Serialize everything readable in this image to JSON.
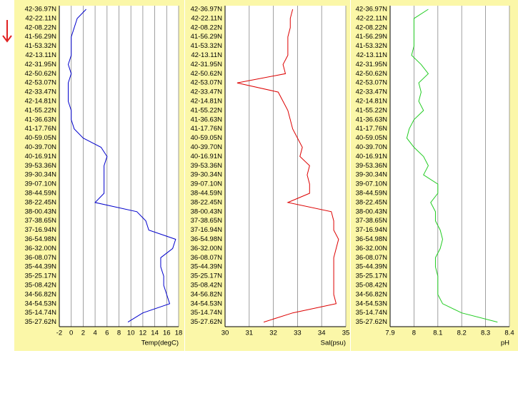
{
  "chart_data": [
    {
      "type": "line",
      "xlabel": "Temp(degC)",
      "color": "#0000cc",
      "categories": [
        "42-36.97N",
        "42-22.11N",
        "42-08.22N",
        "41-56.29N",
        "41-53.32N",
        "42-13.11N",
        "42-31.95N",
        "42-50.62N",
        "42-53.07N",
        "42-33.47N",
        "42-14.81N",
        "41-55.22N",
        "41-36.63N",
        "41-17.76N",
        "40-59.05N",
        "40-39.70N",
        "40-16.91N",
        "39-53.36N",
        "39-30.34N",
        "39-07.10N",
        "38-44.59N",
        "38-22.45N",
        "38-00.43N",
        "37-38.65N",
        "37-16.94N",
        "36-54.98N",
        "36-32.00N",
        "36-08.07N",
        "35-44.39N",
        "35-25.17N",
        "35-08.42N",
        "34-56.82N",
        "34-54.53N",
        "35-14.74N",
        "35-27.62N"
      ],
      "values": [
        2.5,
        1,
        0.5,
        0,
        0,
        0,
        -0.5,
        0,
        -0.5,
        -0.5,
        -0.5,
        0,
        0,
        0.5,
        2,
        5,
        6,
        5.5,
        5.5,
        5.5,
        5.5,
        4,
        11,
        12.5,
        13,
        17.5,
        17,
        15,
        15,
        15.5,
        15.5,
        16,
        16.5,
        12,
        9.5
      ],
      "xlim": [
        -2,
        18
      ],
      "xticks": [
        -2,
        0,
        2,
        4,
        6,
        8,
        10,
        12,
        14,
        16,
        18
      ],
      "grid": true
    },
    {
      "type": "line",
      "xlabel": "Sal(psu)",
      "color": "#dd0000",
      "categories": [
        "42-36.97N",
        "42-22.11N",
        "42-08.22N",
        "41-56.29N",
        "41-53.32N",
        "42-13.11N",
        "42-31.95N",
        "42-50.62N",
        "42-53.07N",
        "42-33.47N",
        "42-14.81N",
        "41-55.22N",
        "41-36.63N",
        "41-17.76N",
        "40-59.05N",
        "40-39.70N",
        "40-16.91N",
        "39-53.36N",
        "39-30.34N",
        "39-07.10N",
        "38-44.59N",
        "38-22.45N",
        "38-00.43N",
        "37-38.65N",
        "37-16.94N",
        "36-54.98N",
        "36-32.00N",
        "36-08.07N",
        "35-44.39N",
        "35-25.17N",
        "35-08.42N",
        "34-56.82N",
        "34-54.53N",
        "35-14.74N",
        "35-27.62N"
      ],
      "values": [
        32.8,
        32.7,
        32.7,
        32.6,
        32.6,
        32.6,
        32.4,
        32.5,
        30.5,
        32.2,
        32.4,
        32.6,
        32.7,
        32.8,
        33,
        33.2,
        33.1,
        33.5,
        33.4,
        33.5,
        33.5,
        32.6,
        34.4,
        34.5,
        34.5,
        34.7,
        34.6,
        34.5,
        34.5,
        34.5,
        34.5,
        34.5,
        34.6,
        32.8,
        31.6
      ],
      "xlim": [
        30,
        35
      ],
      "xticks": [
        30,
        31,
        32,
        33,
        34,
        35
      ],
      "grid": true
    },
    {
      "type": "line",
      "xlabel": "pH",
      "color": "#22cc22",
      "categories": [
        "42-36.97N",
        "42-22.11N",
        "42-08.22N",
        "41-56.29N",
        "41-53.32N",
        "42-13.11N",
        "42-31.95N",
        "42-50.62N",
        "42-53.07N",
        "42-33.47N",
        "42-14.81N",
        "41-55.22N",
        "41-36.63N",
        "41-17.76N",
        "40-59.05N",
        "40-39.70N",
        "40-16.91N",
        "39-53.36N",
        "39-30.34N",
        "39-07.10N",
        "38-44.59N",
        "38-22.45N",
        "38-00.43N",
        "37-38.65N",
        "37-16.94N",
        "36-54.98N",
        "36-32.00N",
        "36-08.07N",
        "35-44.39N",
        "35-25.17N",
        "35-08.42N",
        "34-56.82N",
        "34-54.53N",
        "35-14.74N",
        "35-27.62N"
      ],
      "values": [
        8.06,
        8.0,
        8.0,
        8.0,
        8.0,
        7.99,
        8.03,
        8.06,
        8.02,
        8.03,
        8.02,
        8.04,
        8.0,
        7.98,
        7.97,
        8.0,
        8.04,
        8.06,
        8.04,
        8.1,
        8.1,
        8.07,
        8.09,
        8.09,
        8.11,
        8.12,
        8.11,
        8.09,
        8.09,
        8.1,
        8.1,
        8.1,
        8.12,
        8.2,
        8.35
      ],
      "xlim": [
        7.9,
        8.4
      ],
      "xticks": [
        7.9,
        8,
        8.1,
        8.2,
        8.3,
        8.4
      ],
      "grid": true
    }
  ]
}
